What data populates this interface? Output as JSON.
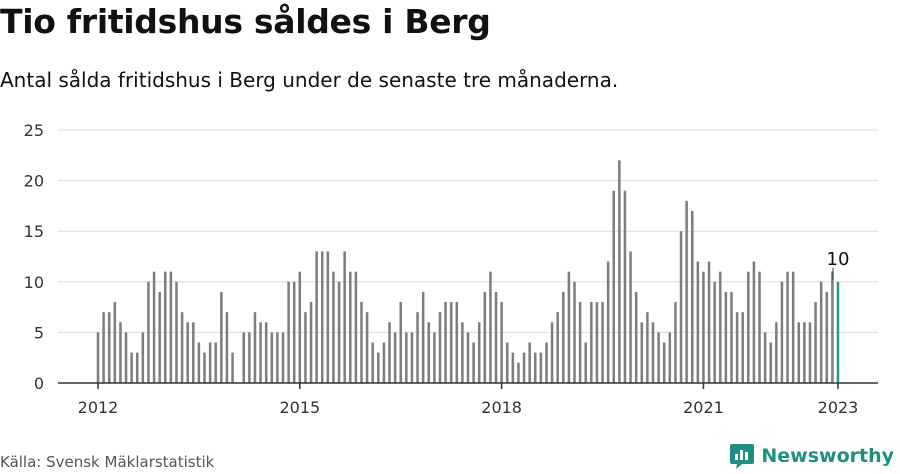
{
  "header": {
    "title": "Tio fritidshus såldes i Berg",
    "subtitle": "Antal sålda fritidshus i Berg under de senaste tre månaderna."
  },
  "footer": {
    "source": "Källa: Svensk Mäklarstatistik",
    "brand": "Newsworthy",
    "brand_color": "#1f8f81"
  },
  "colors": {
    "bar": "#7d7d7d",
    "highlight": "#1f9c8c",
    "grid": "#dddddd",
    "axis": "#333333"
  },
  "chart_data": {
    "type": "bar",
    "x_start": "2012-01",
    "x_frequency": "monthly",
    "x_end": "2023-01",
    "ylim": [
      0,
      25
    ],
    "yticks": [
      "0",
      "5",
      "10",
      "15",
      "20",
      "25"
    ],
    "xtick_labels": [
      "2012",
      "2015",
      "2018",
      "2021",
      "2023"
    ],
    "xtick_dates": [
      "2012-01",
      "2015-01",
      "2018-01",
      "2021-01",
      "2023-01"
    ],
    "values": [
      5,
      7,
      7,
      8,
      6,
      5,
      3,
      3,
      5,
      10,
      11,
      9,
      11,
      11,
      10,
      7,
      6,
      6,
      4,
      3,
      4,
      4,
      9,
      7,
      3,
      0,
      5,
      5,
      7,
      6,
      6,
      5,
      5,
      5,
      10,
      10,
      11,
      7,
      8,
      13,
      13,
      13,
      11,
      10,
      13,
      11,
      11,
      8,
      7,
      4,
      3,
      4,
      6,
      5,
      8,
      5,
      5,
      7,
      9,
      6,
      5,
      7,
      8,
      8,
      8,
      6,
      5,
      4,
      6,
      9,
      11,
      9,
      8,
      4,
      3,
      2,
      3,
      4,
      3,
      3,
      4,
      6,
      7,
      9,
      11,
      10,
      8,
      4,
      8,
      8,
      8,
      12,
      19,
      22,
      19,
      13,
      9,
      6,
      7,
      6,
      5,
      4,
      5,
      8,
      15,
      18,
      17,
      12,
      11,
      12,
      10,
      11,
      9,
      9,
      7,
      7,
      11,
      12,
      11,
      5,
      4,
      6,
      10,
      11,
      11,
      6,
      6,
      6,
      8,
      10,
      9,
      11,
      10
    ],
    "annotation": {
      "text": "10",
      "value": 10
    }
  }
}
